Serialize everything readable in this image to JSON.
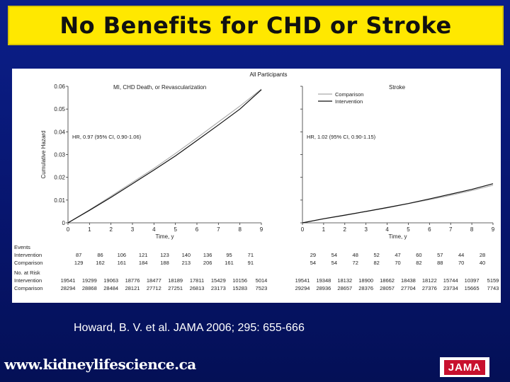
{
  "slide": {
    "title": "No Benefits for CHD or Stroke",
    "citation": "Howard, B. V. et al. JAMA 2006; 295: 655-666",
    "website": "www.kidneylifescience.ca",
    "logo_text": "JAMA",
    "background_color": "#0b1f8a",
    "title_bg_color": "#ffe800"
  },
  "figure": {
    "super_title": "All Participants",
    "events_label": "Events",
    "at_risk_label": "No. at Risk",
    "row_labels": [
      "Intervention",
      "Comparison"
    ]
  },
  "chart_data": [
    {
      "type": "line",
      "title": "MI, CHD Death, or Revascularization",
      "xlabel": "Time, y",
      "ylabel": "Cumulative Hazard",
      "xlim": [
        0,
        9
      ],
      "ylim": [
        0,
        0.06
      ],
      "x_ticks": [
        "0",
        "1",
        "2",
        "3",
        "4",
        "5",
        "6",
        "7",
        "8",
        "9"
      ],
      "y_ticks": [
        "0",
        "0.01",
        "0.02",
        "0.03",
        "0.04",
        "0.05",
        "0.06"
      ],
      "annotation": "HR, 0.97 (95% CI, 0.90-1.06)",
      "series": [
        {
          "name": "Comparison",
          "color": "#aaaaaa",
          "x": [
            0,
            1,
            2,
            3,
            4,
            5,
            6,
            7,
            8,
            9
          ],
          "y": [
            0,
            0.0057,
            0.0117,
            0.0178,
            0.0239,
            0.0305,
            0.0373,
            0.0443,
            0.0513,
            0.0588
          ]
        },
        {
          "name": "Intervention",
          "color": "#111111",
          "x": [
            0,
            1,
            2,
            3,
            4,
            5,
            6,
            7,
            8,
            9
          ],
          "y": [
            0,
            0.0055,
            0.0112,
            0.0172,
            0.0232,
            0.0294,
            0.0362,
            0.043,
            0.05,
            0.0585
          ]
        }
      ],
      "events": {
        "intervention": [
          "87",
          "86",
          "106",
          "121",
          "123",
          "140",
          "136",
          "95",
          "71"
        ],
        "comparison": [
          "129",
          "162",
          "161",
          "184",
          "188",
          "213",
          "206",
          "161",
          "91"
        ]
      },
      "at_risk": {
        "intervention": [
          "19541",
          "19299",
          "19063",
          "18776",
          "18477",
          "18189",
          "17811",
          "15429",
          "10156",
          "5014"
        ],
        "comparison": [
          "28294",
          "28868",
          "28484",
          "28121",
          "27712",
          "27251",
          "26813",
          "23173",
          "15283",
          "7523"
        ]
      }
    },
    {
      "type": "line",
      "title": "Stroke",
      "xlabel": "Time, y",
      "ylabel": "",
      "xlim": [
        0,
        9
      ],
      "ylim": [
        0,
        0.06
      ],
      "x_ticks": [
        "0",
        "1",
        "2",
        "3",
        "4",
        "5",
        "6",
        "7",
        "8",
        "9"
      ],
      "annotation": "HR, 1.02 (95% CI, 0.90-1.15)",
      "legend": [
        "Comparison",
        "Intervention"
      ],
      "legend_position": "top-left",
      "series": [
        {
          "name": "Comparison",
          "color": "#aaaaaa",
          "x": [
            0,
            1,
            2,
            3,
            4,
            5,
            6,
            7,
            8,
            9
          ],
          "y": [
            0,
            0.0017,
            0.0033,
            0.005,
            0.0066,
            0.0084,
            0.0102,
            0.0121,
            0.0142,
            0.0165
          ]
        },
        {
          "name": "Intervention",
          "color": "#111111",
          "x": [
            0,
            1,
            2,
            3,
            4,
            5,
            6,
            7,
            8,
            9
          ],
          "y": [
            0,
            0.0018,
            0.0034,
            0.005,
            0.0067,
            0.0085,
            0.0105,
            0.0126,
            0.0147,
            0.0172
          ]
        }
      ],
      "events": {
        "intervention": [
          "29",
          "54",
          "48",
          "52",
          "47",
          "60",
          "57",
          "44",
          "28"
        ],
        "comparison": [
          "54",
          "54",
          "72",
          "82",
          "70",
          "82",
          "88",
          "70",
          "40"
        ]
      },
      "at_risk": {
        "intervention": [
          "19541",
          "19348",
          "18132",
          "18900",
          "18662",
          "18438",
          "18122",
          "15744",
          "10397",
          "5159"
        ],
        "comparison": [
          "29294",
          "28936",
          "28657",
          "28376",
          "28057",
          "27704",
          "27376",
          "23734",
          "15665",
          "7743"
        ]
      }
    }
  ]
}
